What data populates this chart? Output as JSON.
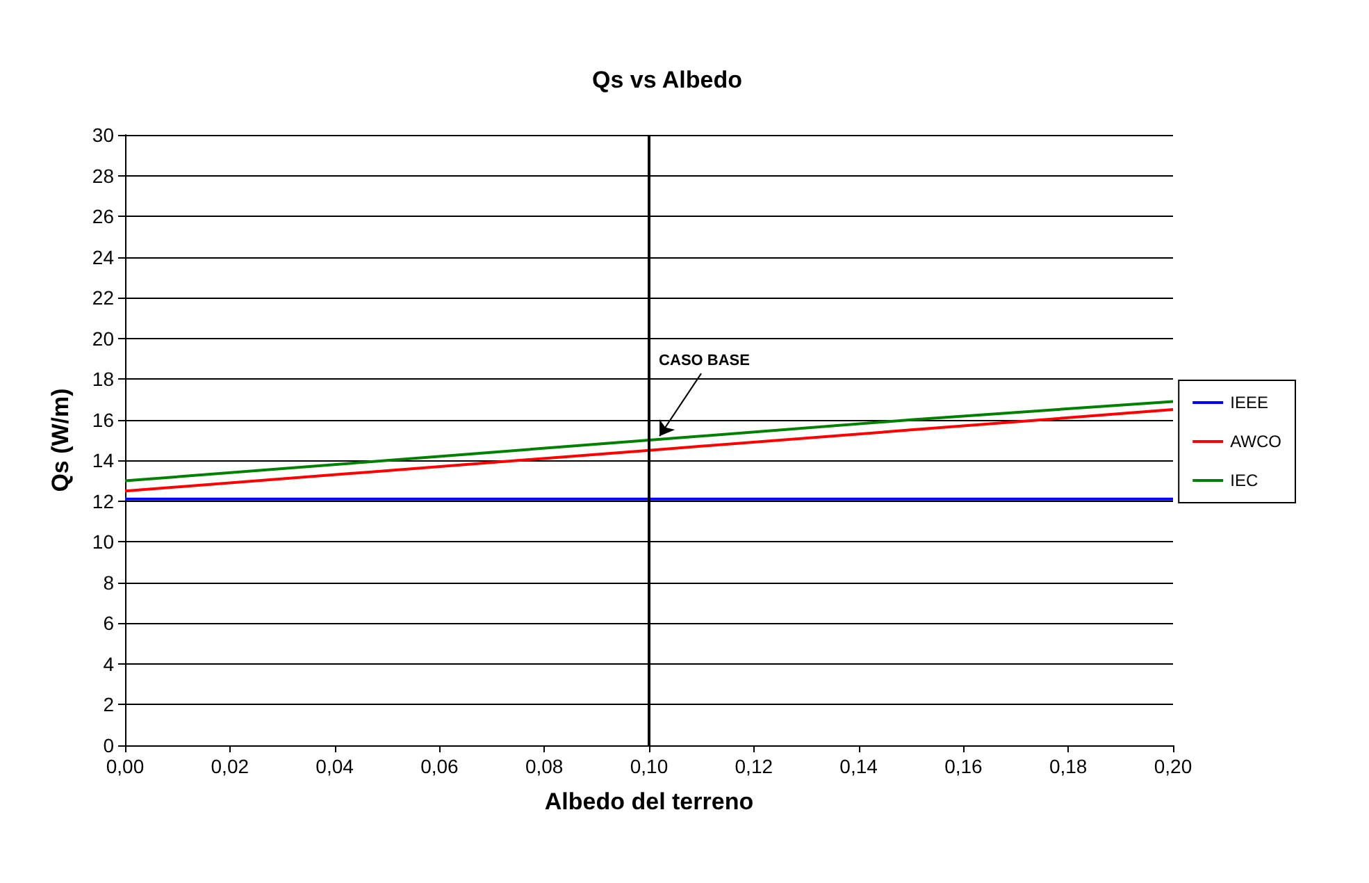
{
  "chart_data": {
    "type": "line",
    "title": "Qs vs Albedo",
    "xlabel": "Albedo del terreno",
    "ylabel": "Qs (W/m)",
    "x": [
      0,
      0.05,
      0.1,
      0.15,
      0.2
    ],
    "series": [
      {
        "name": "IEEE",
        "color": "#0000ff",
        "values": [
          12.1,
          12.1,
          12.1,
          12.1,
          12.1
        ]
      },
      {
        "name": "AWCO",
        "color": "#ff0000",
        "values": [
          12.5,
          13.5,
          14.5,
          15.5,
          16.5
        ]
      },
      {
        "name": "IEC",
        "color": "#008000",
        "values": [
          13.0,
          14.0,
          15.0,
          16.0,
          16.9
        ]
      }
    ],
    "xlim": [
      0,
      0.2
    ],
    "xticks": [
      {
        "value": 0,
        "label": "0,00"
      },
      {
        "value": 0.02,
        "label": "0,02"
      },
      {
        "value": 0.04,
        "label": "0,04"
      },
      {
        "value": 0.06,
        "label": "0,06"
      },
      {
        "value": 0.08,
        "label": "0,08"
      },
      {
        "value": 0.1,
        "label": "0,10"
      },
      {
        "value": 0.12,
        "label": "0,12"
      },
      {
        "value": 0.14,
        "label": "0,14"
      },
      {
        "value": 0.16,
        "label": "0,16"
      },
      {
        "value": 0.18,
        "label": "0,18"
      },
      {
        "value": 0.2,
        "label": "0,20"
      }
    ],
    "ylim": [
      0,
      30
    ],
    "yticks": [
      0,
      2,
      4,
      6,
      8,
      10,
      12,
      14,
      16,
      18,
      20,
      22,
      24,
      26,
      28,
      30
    ],
    "ref_lines": [
      {
        "axis": "x",
        "value": 0.1,
        "color": "#000000"
      }
    ],
    "annotations": [
      {
        "text": "CASO BASE",
        "x": 0.102,
        "y": 15.2
      }
    ],
    "grid": "y",
    "legend": "right",
    "marker": "none",
    "line_style": "solid"
  }
}
